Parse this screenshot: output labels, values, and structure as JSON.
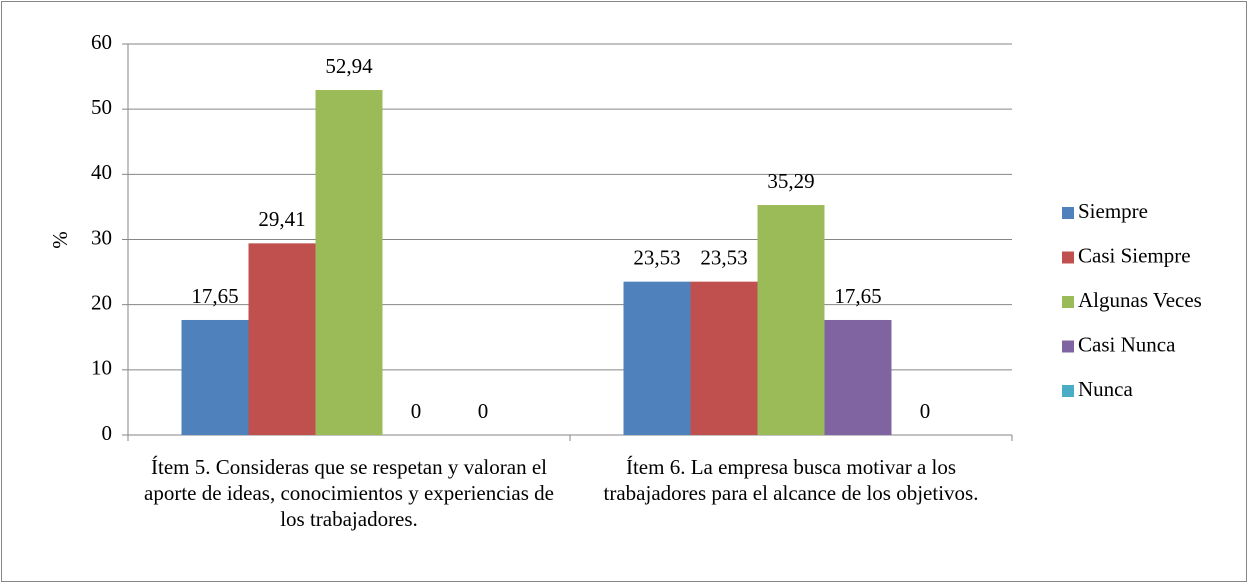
{
  "chart_data": {
    "type": "bar",
    "y_label": "%",
    "categories": [
      "Ítem 5. Consideras que se respetan y valoran el aporte de ideas, conocimientos y experiencias de los trabajadores.",
      "Ítem 6. La empresa busca motivar a los trabajadores para el alcance de los objetivos."
    ],
    "series": [
      {
        "name": "Siempre",
        "color": "#4f81bd",
        "values": [
          17.65,
          23.53
        ],
        "value_labels": [
          "17,65",
          "23,53"
        ]
      },
      {
        "name": "Casi Siempre",
        "color": "#c0504d",
        "values": [
          29.41,
          23.53
        ],
        "value_labels": [
          "29,41",
          "23,53"
        ]
      },
      {
        "name": "Algunas Veces",
        "color": "#9bbb59",
        "values": [
          52.94,
          35.29
        ],
        "value_labels": [
          "52,94",
          "35,29"
        ]
      },
      {
        "name": "Casi Nunca",
        "color": "#8064a2",
        "values": [
          0,
          17.65
        ],
        "value_labels": [
          "0",
          "17,65"
        ]
      },
      {
        "name": "Nunca",
        "color": "#4bacc6",
        "values": [
          0,
          0
        ]
      }
    ],
    "ylim": [
      0,
      60
    ],
    "yticks": [
      0,
      10,
      20,
      30,
      40,
      50,
      60
    ],
    "grid": true,
    "legend": "right"
  }
}
